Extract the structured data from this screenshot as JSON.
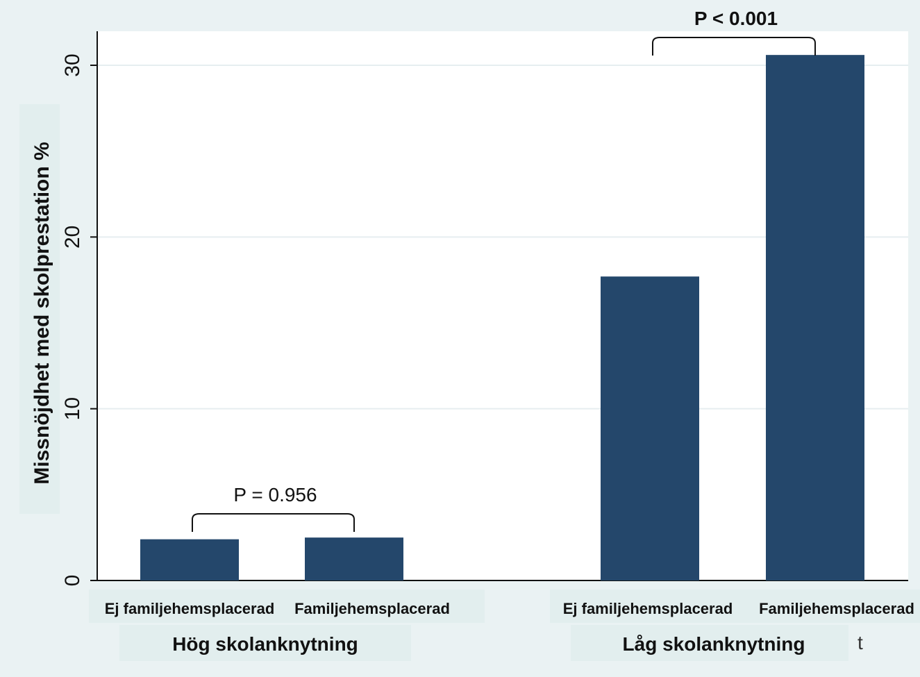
{
  "chart_data": {
    "type": "bar",
    "ylabel": "Missnöjdhet med skolprestation %",
    "ylim": [
      0,
      32
    ],
    "yticks": [
      0,
      10,
      20,
      30
    ],
    "grid": true,
    "bar_color": "#24476b",
    "groups": [
      {
        "label": "Hög skolanknytning",
        "categories": [
          "Ej familjehemsplacerad",
          "Familjehemsplacerad"
        ],
        "values": [
          2.4,
          2.5
        ],
        "annotation": "P = 0.956"
      },
      {
        "label": "Låg skolanknytning",
        "categories": [
          "Ej familjehemsplacerad",
          "Familjehemsplacerad"
        ],
        "values": [
          17.7,
          30.6
        ],
        "annotation": "P < 0.001"
      }
    ]
  },
  "stray_text": "t"
}
